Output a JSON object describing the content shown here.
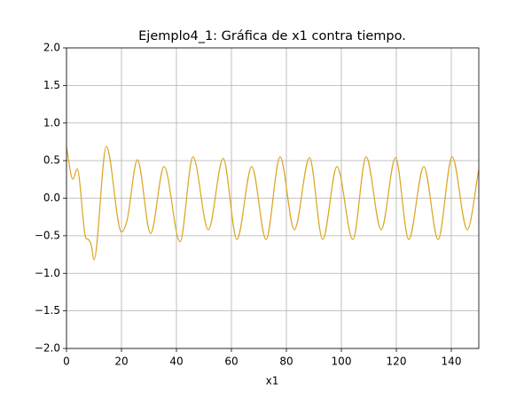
{
  "chart_data": {
    "type": "line",
    "title": "Ejemplo4_1: Gráfica de x1 contra tiempo.",
    "x_label": "x1",
    "grid": true,
    "xlim": [
      0,
      150
    ],
    "xticks": [
      0,
      20,
      40,
      60,
      80,
      100,
      120,
      140
    ],
    "ylim": [
      -2.0,
      2.0
    ],
    "yticks": [
      {
        "value": -2.0,
        "label": "−2.0"
      },
      {
        "value": -1.5,
        "label": "−1.5"
      },
      {
        "value": -1.0,
        "label": "−1.0"
      },
      {
        "value": -0.5,
        "label": "−0.5"
      },
      {
        "value": 0.0,
        "label": "0.0"
      },
      {
        "value": 0.5,
        "label": "0.5"
      },
      {
        "value": 1.0,
        "label": "1.0"
      },
      {
        "value": 1.5,
        "label": "1.5"
      },
      {
        "value": 2.0,
        "label": "2.0"
      }
    ],
    "x": [
      0,
      2.3,
      3.9,
      6.8,
      8,
      9,
      10,
      14.5,
      20,
      22,
      25.8,
      30.6,
      35.5,
      41.3,
      46,
      51.6,
      57,
      62,
      67.4,
      72.6,
      77.7,
      82.9,
      88.4,
      93.2,
      98.4,
      104.2,
      109,
      114.5,
      119.7,
      124.5,
      130,
      135.2,
      140.3,
      145.8,
      150
    ],
    "series": [
      {
        "color": "#daa520",
        "values": [
          0.68,
          0.25,
          0.39,
          -0.5,
          -0.55,
          -0.62,
          -0.82,
          0.69,
          -0.45,
          -0.3,
          0.51,
          -0.47,
          0.42,
          -0.58,
          0.55,
          -0.42,
          0.53,
          -0.55,
          0.42,
          -0.55,
          0.55,
          -0.42,
          0.54,
          -0.55,
          0.42,
          -0.55,
          0.55,
          -0.42,
          0.54,
          -0.55,
          0.42,
          -0.55,
          0.55,
          -0.42,
          0.38
        ]
      }
    ]
  }
}
